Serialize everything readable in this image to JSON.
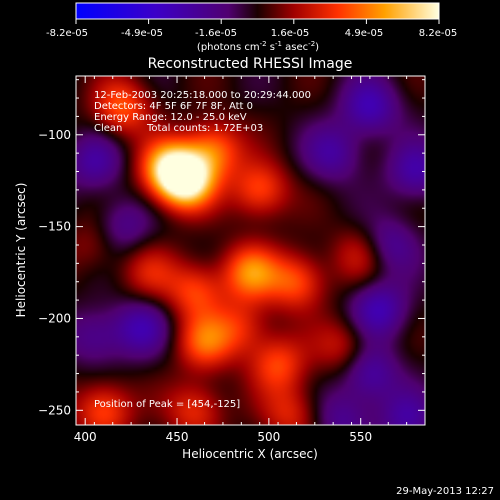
{
  "colorbar": {
    "ticks": [
      "-8.2e-05",
      "-4.9e-05",
      "-1.6e-05",
      "1.6e-05",
      "4.9e-05",
      "8.2e-05"
    ],
    "unit_main": "(photons cm",
    "unit_exp1": "-2",
    "unit_mid": " s",
    "unit_exp2": "-1",
    "unit_tail": " asec",
    "unit_exp3": "-2",
    "unit_close": ")"
  },
  "info": {
    "time_range": "12-Feb-2003 20:25:18.000 to 20:29:44.000",
    "detectors": "Detectors: 4F 5F 6F 7F 8F, Att 0",
    "energy": "Energy Range: 12.0 - 25.0 keV",
    "method": "Clean",
    "counts": "Total counts: 1.72E+03",
    "peak": "Position of Peak = [454,-125]"
  },
  "footer": {
    "date": "29-May-2013 12:27"
  },
  "chart_data": {
    "type": "heatmap",
    "title": "Reconstructed RHESSI Image",
    "xlabel": "Heliocentric X (arcsec)",
    "ylabel": "Heliocentric Y (arcsec)",
    "xlim": [
      395,
      585
    ],
    "ylim": [
      -258,
      -68
    ],
    "x_ticks": [
      400,
      450,
      500,
      550
    ],
    "y_ticks": [
      -100,
      -150,
      -200,
      -250
    ],
    "colorbar_range": [
      -8.2e-05,
      8.2e-05
    ],
    "peak": [
      454,
      -125
    ],
    "sources": [
      {
        "x": 455,
        "y": -125,
        "v": 1.0
      },
      {
        "x": 445,
        "y": -118,
        "v": 0.7
      },
      {
        "x": 470,
        "y": -108,
        "v": 0.55
      },
      {
        "x": 420,
        "y": -85,
        "v": 0.5
      },
      {
        "x": 495,
        "y": -130,
        "v": 0.5
      },
      {
        "x": 490,
        "y": -175,
        "v": 0.6
      },
      {
        "x": 515,
        "y": -180,
        "v": 0.5
      },
      {
        "x": 460,
        "y": -185,
        "v": 0.45
      },
      {
        "x": 435,
        "y": -175,
        "v": 0.3
      },
      {
        "x": 465,
        "y": -213,
        "v": 0.5
      },
      {
        "x": 505,
        "y": -225,
        "v": 0.45
      },
      {
        "x": 485,
        "y": -205,
        "v": 0.35
      },
      {
        "x": 410,
        "y": -250,
        "v": 0.5
      },
      {
        "x": 460,
        "y": -250,
        "v": 0.4
      },
      {
        "x": 512,
        "y": -252,
        "v": 0.35
      },
      {
        "x": 540,
        "y": -215,
        "v": 0.3
      },
      {
        "x": 550,
        "y": -165,
        "v": 0.3
      },
      {
        "x": 405,
        "y": -160,
        "v": 0.2
      },
      {
        "x": 555,
        "y": -85,
        "v": -0.45
      },
      {
        "x": 535,
        "y": -110,
        "v": -0.35
      },
      {
        "x": 580,
        "y": -120,
        "v": -0.4
      },
      {
        "x": 405,
        "y": -115,
        "v": -0.35
      },
      {
        "x": 420,
        "y": -150,
        "v": -0.3
      },
      {
        "x": 565,
        "y": -160,
        "v": -0.35
      },
      {
        "x": 555,
        "y": -230,
        "v": -0.4
      },
      {
        "x": 540,
        "y": -255,
        "v": -0.3
      },
      {
        "x": 405,
        "y": -210,
        "v": -0.3
      },
      {
        "x": 430,
        "y": -205,
        "v": -0.4
      },
      {
        "x": 560,
        "y": -195,
        "v": -0.45
      },
      {
        "x": 575,
        "y": -255,
        "v": -0.35
      }
    ]
  }
}
